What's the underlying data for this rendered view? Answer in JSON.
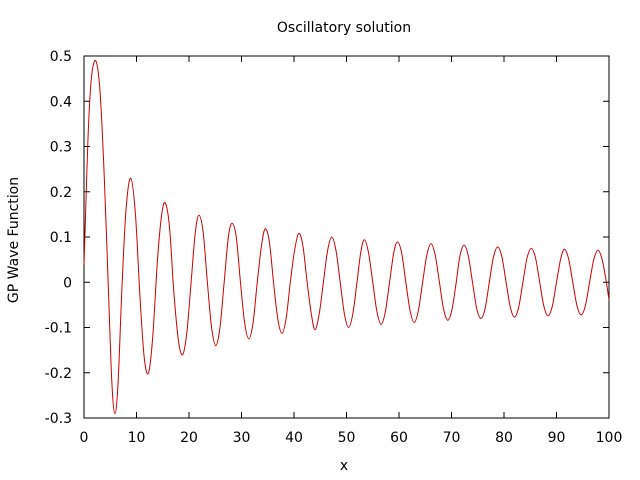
{
  "chart_data": {
    "type": "line",
    "title": "Oscillatory solution",
    "xlabel": "x",
    "ylabel": "GP Wave Function",
    "xlim": [
      0,
      100
    ],
    "ylim": [
      -0.3,
      0.5
    ],
    "xticks": [
      0,
      10,
      20,
      30,
      40,
      50,
      60,
      70,
      80,
      90,
      100
    ],
    "yticks": [
      -0.3,
      -0.2,
      -0.1,
      0,
      0.1,
      0.2,
      0.3,
      0.4,
      0.5
    ],
    "xtick_labels": [
      "0",
      "10",
      "20",
      "30",
      "40",
      "50",
      "60",
      "70",
      "80",
      "90",
      "100"
    ],
    "ytick_labels": [
      "-0.3",
      "-0.2",
      "-0.1",
      "0",
      "0.1",
      "0.2",
      "0.3",
      "0.4",
      "0.5"
    ],
    "grid": false,
    "line_color": "#cc0000",
    "series": [
      {
        "points": [
          [
            0.0,
            0.04
          ],
          [
            0.3,
            0.15
          ],
          [
            0.8,
            0.33
          ],
          [
            1.4,
            0.45
          ],
          [
            2.2,
            0.49
          ],
          [
            3.0,
            0.43
          ],
          [
            3.8,
            0.25
          ],
          [
            4.6,
            0.0
          ],
          [
            5.3,
            -0.22
          ],
          [
            5.9,
            -0.29
          ],
          [
            6.5,
            -0.22
          ],
          [
            7.2,
            -0.02
          ],
          [
            8.0,
            0.16
          ],
          [
            8.9,
            0.23
          ],
          [
            9.8,
            0.15
          ],
          [
            10.7,
            -0.04
          ],
          [
            11.5,
            -0.17
          ],
          [
            12.3,
            -0.2
          ],
          [
            13.1,
            -0.12
          ],
          [
            14.0,
            0.05
          ],
          [
            14.8,
            0.15
          ],
          [
            15.5,
            0.175
          ],
          [
            16.3,
            0.12
          ],
          [
            17.1,
            -0.02
          ],
          [
            18.0,
            -0.13
          ],
          [
            18.8,
            -0.16
          ],
          [
            19.6,
            -0.11
          ],
          [
            20.4,
            0.0
          ],
          [
            21.2,
            0.11
          ],
          [
            21.9,
            0.148
          ],
          [
            22.7,
            0.11
          ],
          [
            23.5,
            0.0
          ],
          [
            24.3,
            -0.1
          ],
          [
            25.1,
            -0.14
          ],
          [
            25.9,
            -0.1
          ],
          [
            26.7,
            0.0
          ],
          [
            27.5,
            0.1
          ],
          [
            28.2,
            0.13
          ],
          [
            29.0,
            0.1
          ],
          [
            29.8,
            0.0
          ],
          [
            30.6,
            -0.09
          ],
          [
            31.4,
            -0.125
          ],
          [
            32.2,
            -0.09
          ],
          [
            33.0,
            0.0
          ],
          [
            33.8,
            0.08
          ],
          [
            34.5,
            0.118
          ],
          [
            35.3,
            0.09
          ],
          [
            36.1,
            0.0
          ],
          [
            36.9,
            -0.08
          ],
          [
            37.7,
            -0.113
          ],
          [
            38.5,
            -0.08
          ],
          [
            39.3,
            0.0
          ],
          [
            40.1,
            0.07
          ],
          [
            40.9,
            0.108
          ],
          [
            41.7,
            0.08
          ],
          [
            42.5,
            0.0
          ],
          [
            43.3,
            -0.07
          ],
          [
            44.0,
            -0.105
          ],
          [
            44.8,
            -0.07
          ],
          [
            45.6,
            0.0
          ],
          [
            46.4,
            0.07
          ],
          [
            47.2,
            0.1
          ],
          [
            48.0,
            0.07
          ],
          [
            48.8,
            0.0
          ],
          [
            49.6,
            -0.07
          ],
          [
            50.4,
            -0.1
          ],
          [
            51.2,
            -0.07
          ],
          [
            52.0,
            0.0
          ],
          [
            52.7,
            0.065
          ],
          [
            53.4,
            0.094
          ],
          [
            54.2,
            0.065
          ],
          [
            55.0,
            0.0
          ],
          [
            55.8,
            -0.065
          ],
          [
            56.6,
            -0.093
          ],
          [
            57.4,
            -0.065
          ],
          [
            58.2,
            0.0
          ],
          [
            59.0,
            0.065
          ],
          [
            59.7,
            0.089
          ],
          [
            60.5,
            0.065
          ],
          [
            61.3,
            0.0
          ],
          [
            62.1,
            -0.062
          ],
          [
            62.9,
            -0.089
          ],
          [
            63.7,
            -0.062
          ],
          [
            64.5,
            0.0
          ],
          [
            65.3,
            0.06
          ],
          [
            66.1,
            0.085
          ],
          [
            66.9,
            0.06
          ],
          [
            67.7,
            0.0
          ],
          [
            68.5,
            -0.06
          ],
          [
            69.3,
            -0.084
          ],
          [
            70.1,
            -0.06
          ],
          [
            70.9,
            0.0
          ],
          [
            71.6,
            0.058
          ],
          [
            72.4,
            0.082
          ],
          [
            73.2,
            0.058
          ],
          [
            74.0,
            0.0
          ],
          [
            74.8,
            -0.058
          ],
          [
            75.6,
            -0.08
          ],
          [
            76.4,
            -0.058
          ],
          [
            77.2,
            0.0
          ],
          [
            78.0,
            0.056
          ],
          [
            78.8,
            0.078
          ],
          [
            79.6,
            0.056
          ],
          [
            80.4,
            0.0
          ],
          [
            81.2,
            -0.055
          ],
          [
            82.0,
            -0.077
          ],
          [
            82.8,
            -0.055
          ],
          [
            83.6,
            0.0
          ],
          [
            84.4,
            0.054
          ],
          [
            85.2,
            0.075
          ],
          [
            86.0,
            0.054
          ],
          [
            86.8,
            0.0
          ],
          [
            87.6,
            -0.053
          ],
          [
            88.4,
            -0.074
          ],
          [
            89.2,
            -0.053
          ],
          [
            90.0,
            0.0
          ],
          [
            90.8,
            0.052
          ],
          [
            91.5,
            0.073
          ],
          [
            92.3,
            0.052
          ],
          [
            93.1,
            0.0
          ],
          [
            93.9,
            -0.052
          ],
          [
            94.7,
            -0.072
          ],
          [
            95.5,
            -0.052
          ],
          [
            96.3,
            0.0
          ],
          [
            97.1,
            0.05
          ],
          [
            97.9,
            0.071
          ],
          [
            98.7,
            0.05
          ],
          [
            99.5,
            0.0
          ],
          [
            100.0,
            -0.04
          ]
        ]
      }
    ]
  }
}
